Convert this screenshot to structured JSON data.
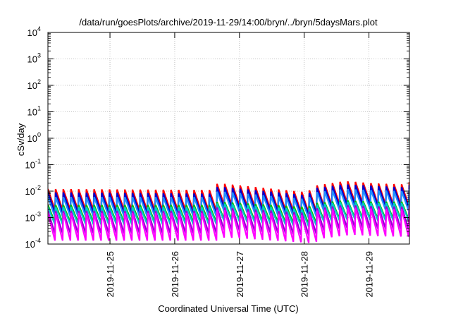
{
  "chart_data": {
    "type": "line",
    "title": "/data/run/goesPlots/archive/2019-11-29/14:00/bryn/../bryn/5daysMars.plot",
    "xlabel": "Coordinated Universal Time (UTC)",
    "ylabel": "cSv/day",
    "yscale": "log",
    "ylim": [
      0.0001,
      10000
    ],
    "xlim": [
      "2019-11-24T01:00",
      "2019-11-29T15:00"
    ],
    "grid": true,
    "legend": "none",
    "x_ticks": [
      "2019-11-25",
      "2019-11-26",
      "2019-11-27",
      "2019-11-28",
      "2019-11-29"
    ],
    "y_ticks": [
      {
        "base": "10",
        "exp": "-4"
      },
      {
        "base": "10",
        "exp": "-3"
      },
      {
        "base": "10",
        "exp": "-2"
      },
      {
        "base": "10",
        "exp": "-1"
      },
      {
        "base": "10",
        "exp": "0"
      },
      {
        "base": "10",
        "exp": "1"
      },
      {
        "base": "10",
        "exp": "2"
      },
      {
        "base": "10",
        "exp": "3"
      },
      {
        "base": "10",
        "exp": "4"
      }
    ],
    "sawtooth_period_hours": 2.85,
    "series": [
      {
        "color": "#ff0000",
        "peaks": [
          [
            0,
            0.012
          ],
          [
            60,
            0.011
          ],
          [
            63,
            0.02
          ],
          [
            96,
            0.009
          ],
          [
            99,
            0.016
          ],
          [
            110,
            0.024
          ],
          [
            120,
            0.02
          ],
          [
            131,
            0.018
          ],
          [
            134,
            0.022
          ]
        ],
        "drop_ratio": 0.16
      },
      {
        "color": "#0000cd",
        "peaks": [
          [
            0,
            0.009
          ],
          [
            60,
            0.008
          ],
          [
            63,
            0.015
          ],
          [
            96,
            0.007
          ],
          [
            99,
            0.013
          ],
          [
            110,
            0.018
          ],
          [
            120,
            0.016
          ],
          [
            131,
            0.014
          ],
          [
            134,
            0.017
          ]
        ],
        "drop_ratio": 0.17
      },
      {
        "color": "#1e90ff",
        "peaks": [
          [
            0,
            0.006
          ],
          [
            60,
            0.006
          ],
          [
            63,
            0.01
          ],
          [
            96,
            0.005
          ],
          [
            99,
            0.009
          ],
          [
            110,
            0.012
          ],
          [
            120,
            0.011
          ],
          [
            131,
            0.01
          ],
          [
            134,
            0.012
          ]
        ],
        "drop_ratio": 0.18
      },
      {
        "color": "#00c000",
        "peaks": [
          [
            0,
            0.003
          ],
          [
            60,
            0.003
          ],
          [
            63,
            0.004
          ],
          [
            96,
            0.0025
          ],
          [
            99,
            0.0035
          ],
          [
            110,
            0.0045
          ],
          [
            120,
            0.004
          ],
          [
            131,
            0.004
          ],
          [
            134,
            0.0045
          ]
        ],
        "drop_ratio": 0.22
      },
      {
        "color": "#00c8c8",
        "peaks": [
          [
            0,
            0.0025
          ],
          [
            60,
            0.0025
          ],
          [
            63,
            0.0035
          ],
          [
            96,
            0.002
          ],
          [
            99,
            0.003
          ],
          [
            110,
            0.004
          ],
          [
            120,
            0.0035
          ],
          [
            131,
            0.0035
          ],
          [
            134,
            0.004
          ]
        ],
        "drop_ratio": 0.22
      },
      {
        "color": "#9400d3",
        "peaks": [
          [
            0,
            0.0018
          ],
          [
            60,
            0.0018
          ],
          [
            63,
            0.0025
          ],
          [
            96,
            0.0015
          ],
          [
            99,
            0.0022
          ],
          [
            110,
            0.003
          ],
          [
            120,
            0.0027
          ],
          [
            131,
            0.0026
          ],
          [
            134,
            0.003
          ]
        ],
        "drop_ratio": 0.14
      },
      {
        "color": "#ff00ff",
        "peaks": [
          [
            0,
            0.0015
          ],
          [
            60,
            0.0015
          ],
          [
            63,
            0.002
          ],
          [
            96,
            0.0012
          ],
          [
            99,
            0.0018
          ],
          [
            110,
            0.0025
          ],
          [
            120,
            0.0022
          ],
          [
            131,
            0.0021
          ],
          [
            134,
            0.0025
          ]
        ],
        "drop_ratio": 0.09
      }
    ]
  }
}
